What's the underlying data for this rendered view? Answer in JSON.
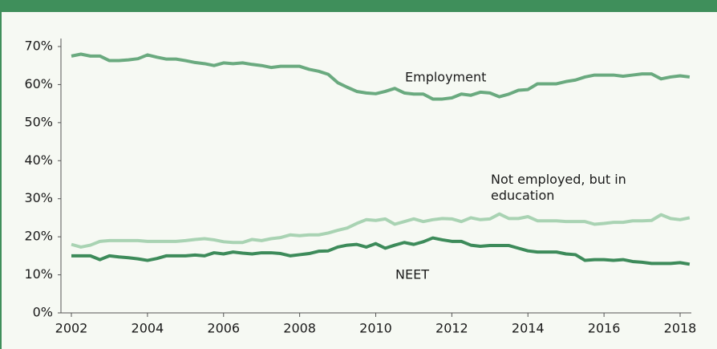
{
  "chart_data": {
    "type": "line",
    "x": [
      2002,
      2002.25,
      2002.5,
      2002.75,
      2003,
      2003.25,
      2003.5,
      2003.75,
      2004,
      2004.25,
      2004.5,
      2004.75,
      2005,
      2005.25,
      2005.5,
      2005.75,
      2006,
      2006.25,
      2006.5,
      2006.75,
      2007,
      2007.25,
      2007.5,
      2007.75,
      2008,
      2008.25,
      2008.5,
      2008.75,
      2009,
      2009.25,
      2009.5,
      2009.75,
      2010,
      2010.25,
      2010.5,
      2010.75,
      2011,
      2011.25,
      2011.5,
      2011.75,
      2012,
      2012.25,
      2012.5,
      2012.75,
      2013,
      2013.25,
      2013.5,
      2013.75,
      2014,
      2014.25,
      2014.5,
      2014.75,
      2015,
      2015.25,
      2015.5,
      2015.75,
      2016,
      2016.25,
      2016.5,
      2016.75,
      2017,
      2017.25,
      2017.5,
      2017.75,
      2018,
      2018.25
    ],
    "series": [
      {
        "name": "Employment",
        "color": "#6aaa7f",
        "values": [
          67.5,
          68,
          67.5,
          67.5,
          66.3,
          66.3,
          66.5,
          66.8,
          67.8,
          67.2,
          66.7,
          66.7,
          66.3,
          65.8,
          65.5,
          65,
          65.7,
          65.5,
          65.7,
          65.3,
          65,
          64.5,
          64.8,
          64.8,
          64.8,
          64,
          63.5,
          62.7,
          60.5,
          59.3,
          58.2,
          57.8,
          57.6,
          58.2,
          59,
          57.8,
          57.5,
          57.5,
          56.2,
          56.2,
          56.5,
          57.5,
          57.2,
          58,
          57.8,
          56.8,
          57.5,
          58.5,
          58.7,
          60.2,
          60.2,
          60.2,
          60.8,
          61.2,
          62,
          62.5,
          62.5,
          62.5,
          62.2,
          62.5,
          62.8,
          62.8,
          61.5,
          62,
          62.3,
          62
        ]
      },
      {
        "name": "Not employed, but in education",
        "color": "#a9d3b3",
        "values": [
          18,
          17.3,
          17.8,
          18.8,
          19,
          19,
          19,
          19,
          18.8,
          18.8,
          18.8,
          18.8,
          19,
          19.3,
          19.5,
          19.2,
          18.7,
          18.5,
          18.5,
          19.3,
          19,
          19.5,
          19.8,
          20.5,
          20.3,
          20.5,
          20.5,
          21,
          21.7,
          22.3,
          23.5,
          24.5,
          24.3,
          24.7,
          23.3,
          24,
          24.7,
          24,
          24.5,
          24.8,
          24.7,
          24,
          25,
          24.5,
          24.7,
          26,
          24.8,
          24.8,
          25.3,
          24.2,
          24.2,
          24.2,
          24,
          24,
          24,
          23.3,
          23.5,
          23.8,
          23.8,
          24.2,
          24.2,
          24.3,
          25.8,
          24.8,
          24.5,
          25
        ]
      },
      {
        "name": "NEET",
        "color": "#3d8b5a",
        "values": [
          15,
          15,
          15,
          14,
          15,
          14.7,
          14.5,
          14.2,
          13.8,
          14.3,
          15,
          15,
          15,
          15.2,
          15,
          15.8,
          15.5,
          16,
          15.7,
          15.5,
          15.8,
          15.8,
          15.6,
          15,
          15.3,
          15.6,
          16.2,
          16.3,
          17.3,
          17.8,
          18,
          17.3,
          18.2,
          17,
          17.8,
          18.5,
          18,
          18.7,
          19.7,
          19.2,
          18.8,
          18.8,
          17.8,
          17.5,
          17.7,
          17.7,
          17.7,
          17,
          16.3,
          16,
          16,
          16,
          15.5,
          15.3,
          13.8,
          14,
          14,
          13.8,
          14,
          13.5,
          13.3,
          13,
          13,
          13,
          13.2,
          12.8
        ]
      }
    ],
    "xlim": [
      2002,
      2018.25
    ],
    "xticks": [
      2002,
      2004,
      2006,
      2008,
      2010,
      2012,
      2014,
      2016,
      2018
    ],
    "ylim": [
      0,
      70
    ],
    "yticks": [
      {
        "value": 0,
        "label": "0%"
      },
      {
        "value": 10,
        "label": "10%"
      },
      {
        "value": 20,
        "label": "20%"
      },
      {
        "value": 30,
        "label": "30%"
      },
      {
        "value": 40,
        "label": "40%"
      },
      {
        "value": 50,
        "label": "50%"
      },
      {
        "value": 60,
        "label": "60%"
      },
      {
        "value": 70,
        "label": "70%"
      }
    ],
    "grid": false
  }
}
